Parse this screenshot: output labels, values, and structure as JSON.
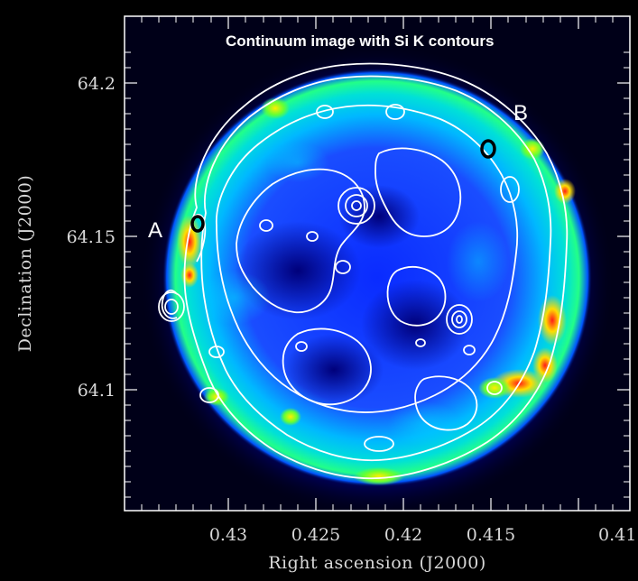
{
  "figure": {
    "title": "Continuum image with Si K contours",
    "xlabel": "Right ascension (J2000)",
    "ylabel": "Declination (J2000)",
    "x_ticks": [
      "0.43",
      "0.425",
      "0.42",
      "0.415",
      "0.41"
    ],
    "y_ticks": [
      "64.2",
      "64.15",
      "64.1"
    ],
    "regions": [
      {
        "label": "A"
      },
      {
        "label": "B"
      }
    ],
    "colors": {
      "background": "#000000",
      "frame": "#ffffff",
      "contour": "#ffffff",
      "marker": "#000000",
      "colormap": [
        "#00008b",
        "#0033ff",
        "#00c8ff",
        "#22ff66",
        "#ffff00",
        "#ff2020"
      ]
    }
  }
}
